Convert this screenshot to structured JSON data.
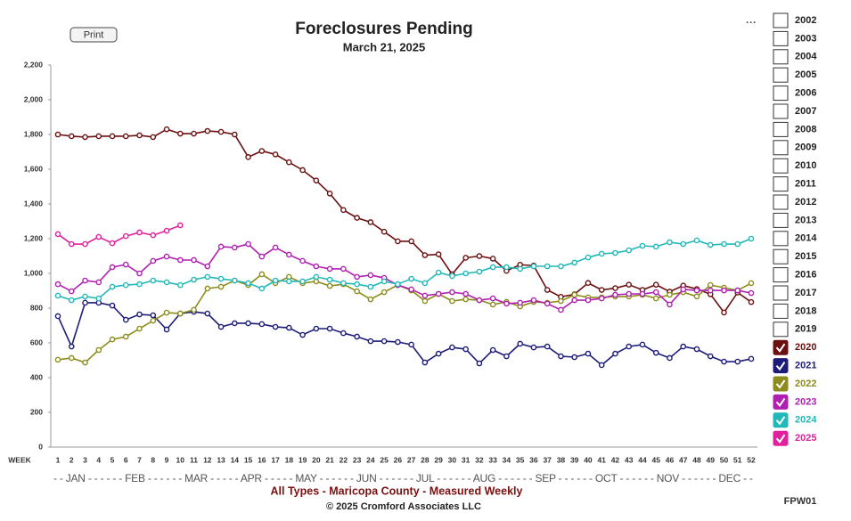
{
  "chart_data": {
    "type": "line",
    "title": "Foreclosures Pending",
    "subtitle": "March 21, 2025",
    "x_label": "WEEK",
    "months_label": "- - JAN - - - - - - FEB - - - - - - MAR - - - - - APR - - - - - MAY - - - - - - JUN - - - - - - JUL - - - - - - AUG - - - - - - SEP - - - - - - OCT - - - - - - NOV - - - - - - DEC - -",
    "caption": "All Types - Maricopa County - Measured Weekly",
    "copyright": "© 2025 Cromford Associates LLC",
    "chart_code": "FPW01",
    "print_button": "Print",
    "menu_icon": "···",
    "categories": [
      "1",
      "2",
      "3",
      "4",
      "5",
      "6",
      "7",
      "8",
      "9",
      "10",
      "11",
      "12",
      "13",
      "14",
      "15",
      "16",
      "17",
      "18",
      "19",
      "20",
      "21",
      "22",
      "23",
      "24",
      "25",
      "26",
      "27",
      "28",
      "29",
      "30",
      "31",
      "32",
      "33",
      "34",
      "35",
      "36",
      "37",
      "38",
      "39",
      "40",
      "41",
      "42",
      "43",
      "44",
      "45",
      "46",
      "47",
      "48",
      "49",
      "50",
      "51",
      "52"
    ],
    "ylim": [
      0,
      2200
    ],
    "yticks": [
      0,
      200,
      400,
      600,
      800,
      {
        "value": 1000,
        "label": "1,000"
      },
      {
        "value": 1200,
        "label": "1,200"
      },
      {
        "value": 1400,
        "label": "1,400"
      },
      {
        "value": 1600,
        "label": "1,600"
      },
      {
        "value": 1800,
        "label": "1,800"
      },
      {
        "value": 2000,
        "label": "2,000"
      },
      {
        "value": 2200,
        "label": "2,200"
      }
    ],
    "grid": false,
    "legend_unchecked": [
      "2002",
      "2003",
      "2004",
      "2005",
      "2006",
      "2007",
      "2008",
      "2009",
      "2010",
      "2011",
      "2012",
      "2013",
      "2014",
      "2015",
      "2016",
      "2017",
      "2018",
      "2019"
    ],
    "series": [
      {
        "name": "2020",
        "color": "#6b1010",
        "values": [
          1800,
          1790,
          1785,
          1790,
          1790,
          1790,
          1795,
          1785,
          1830,
          1805,
          1805,
          1820,
          1815,
          1800,
          1670,
          1705,
          1685,
          1640,
          1595,
          1535,
          1460,
          1365,
          1320,
          1295,
          1240,
          1185,
          1185,
          1105,
          1110,
          995,
          1090,
          1100,
          1085,
          1015,
          1050,
          1045,
          905,
          865,
          880,
          945,
          905,
          915,
          935,
          905,
          935,
          895,
          930,
          910,
          880,
          775,
          890,
          835
        ]
      },
      {
        "name": "2021",
        "color": "#1c1c78",
        "values": [
          754,
          579,
          831,
          831,
          815,
          733,
          764,
          759,
          677,
          769,
          779,
          769,
          692,
          713,
          713,
          708,
          692,
          687,
          646,
          682,
          682,
          656,
          636,
          610,
          610,
          605,
          590,
          487,
          538,
          574,
          564,
          482,
          559,
          523,
          595,
          574,
          579,
          523,
          518,
          538,
          472,
          538,
          579,
          590,
          543,
          513,
          579,
          564,
          523,
          492,
          492,
          508
        ]
      },
      {
        "name": "2022",
        "color": "#8c8c1c",
        "values": [
          503,
          513,
          487,
          559,
          620,
          636,
          682,
          728,
          774,
          769,
          790,
          913,
          923,
          959,
          933,
          995,
          944,
          980,
          944,
          954,
          928,
          938,
          897,
          851,
          892,
          933,
          902,
          841,
          882,
          841,
          851,
          846,
          821,
          836,
          810,
          836,
          831,
          841,
          877,
          862,
          862,
          867,
          867,
          877,
          856,
          877,
          892,
          867,
          933,
          918,
          902,
          944
        ]
      },
      {
        "name": "2023",
        "color": "#b020b0",
        "values": [
          938,
          897,
          959,
          949,
          1036,
          1051,
          1000,
          1072,
          1097,
          1077,
          1077,
          1041,
          1154,
          1149,
          1169,
          1097,
          1149,
          1108,
          1072,
          1041,
          1026,
          1026,
          980,
          990,
          974,
          933,
          908,
          872,
          882,
          892,
          882,
          846,
          856,
          826,
          831,
          846,
          826,
          790,
          846,
          846,
          856,
          877,
          882,
          882,
          892,
          821,
          908,
          902,
          902,
          902,
          902,
          887
        ]
      },
      {
        "name": "2024",
        "color": "#22b8b8",
        "values": [
          872,
          846,
          867,
          856,
          923,
          933,
          938,
          959,
          949,
          933,
          964,
          980,
          969,
          959,
          944,
          913,
          959,
          954,
          954,
          980,
          964,
          944,
          938,
          923,
          954,
          938,
          969,
          944,
          1005,
          985,
          1000,
          1010,
          1036,
          1036,
          1026,
          1041,
          1041,
          1041,
          1062,
          1092,
          1113,
          1118,
          1133,
          1159,
          1154,
          1179,
          1169,
          1190,
          1164,
          1169,
          1169,
          1200
        ]
      },
      {
        "name": "2025",
        "color": "#e0209c",
        "values": [
          1226,
          1169,
          1169,
          1210,
          1174,
          1215,
          1236,
          1220,
          1246,
          1277,
          null,
          null,
          null,
          null,
          null,
          null,
          null,
          null,
          null,
          null,
          null,
          null,
          null,
          null,
          null,
          null,
          null,
          null,
          null,
          null,
          null,
          null,
          null,
          null,
          null,
          null,
          null,
          null,
          null,
          null,
          null,
          null,
          null,
          null,
          null,
          null,
          null,
          null,
          null,
          null,
          null,
          null
        ]
      }
    ]
  }
}
